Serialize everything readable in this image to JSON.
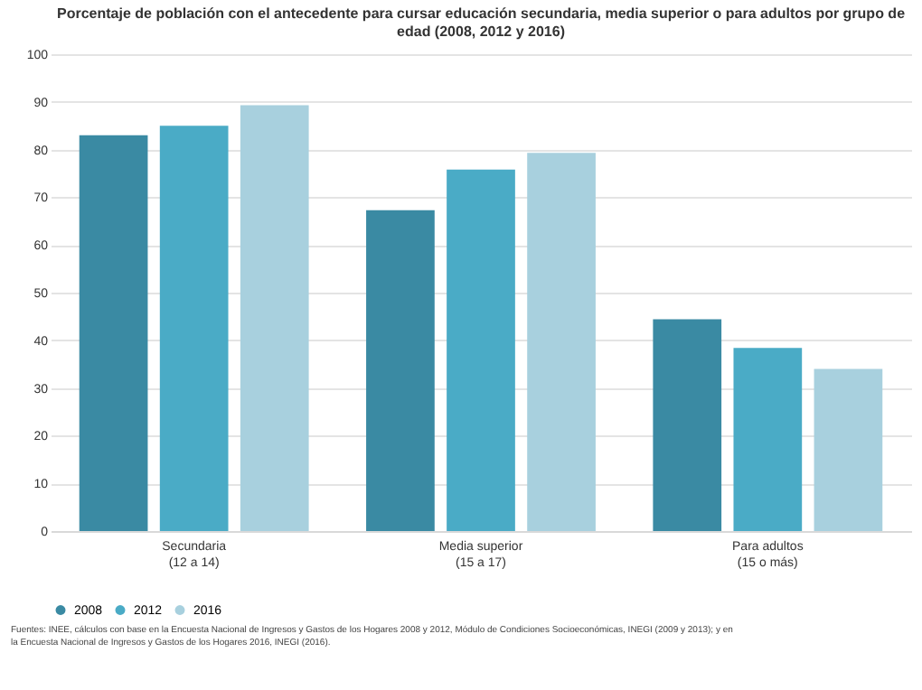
{
  "chart_data": {
    "type": "bar",
    "title": "Porcentaje de población con el antecedente para cursar educación secundaria, media superior o para adultos por grupo de edad (2008, 2012 y 2016)",
    "categories": [
      "Secundaria\n(12 a 14)",
      "Media superior\n(15 a 17)",
      "Para adultos\n(15 o más)"
    ],
    "series": [
      {
        "name": "2008",
        "color": "#3a8aa3",
        "values": [
          83,
          67.3,
          44.4
        ]
      },
      {
        "name": "2012",
        "color": "#4aabc6",
        "values": [
          85,
          75.8,
          38.4
        ]
      },
      {
        "name": "2016",
        "color": "#a8d0de",
        "values": [
          89.3,
          79.3,
          34
        ]
      }
    ],
    "ylim": [
      0,
      100
    ],
    "yticks": [
      0,
      10,
      20,
      30,
      40,
      50,
      60,
      70,
      80,
      90,
      100
    ],
    "grid": "y",
    "legend": "bottom",
    "annotations": [
      "Fuentes: INEE, cálculos con base en la Encuesta Nacional de Ingresos y Gastos de los Hogares 2008 y 2012, Módulo de Condiciones Socioeconómicas, INEGI (2009 y 2013); y en la Encuesta Nacional de Ingresos y Gastos de los Hogares 2016, INEGI (2016)."
    ]
  }
}
